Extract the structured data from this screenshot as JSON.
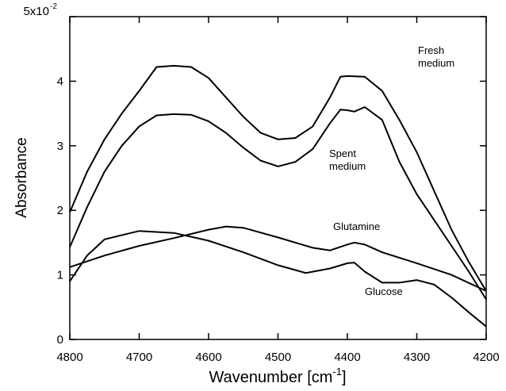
{
  "chart_data": {
    "type": "line",
    "x_label": "Wavenumber [cm",
    "x_label_sup": "-1",
    "x_label_end": "]",
    "y_label": "Absorbance",
    "y_exponent": "-2",
    "xlim": [
      4800,
      4200
    ],
    "xticks": [
      4800,
      4700,
      4600,
      4500,
      4400,
      4300,
      4200
    ],
    "ylim": [
      0,
      5
    ],
    "yticks": [
      0,
      1,
      2,
      3,
      4,
      {
        "value": 5,
        "label": "5x10"
      }
    ],
    "series": [
      {
        "name": "Fresh medium",
        "color": "#000000",
        "x": [
          4800,
          4775,
          4750,
          4725,
          4700,
          4675,
          4650,
          4625,
          4600,
          4575,
          4550,
          4525,
          4500,
          4475,
          4450,
          4425,
          4410,
          4400,
          4375,
          4350,
          4325,
          4300,
          4275,
          4250,
          4225,
          4200
        ],
        "values": [
          1.97,
          2.6,
          3.1,
          3.5,
          3.85,
          4.22,
          4.24,
          4.22,
          4.05,
          3.75,
          3.45,
          3.2,
          3.1,
          3.12,
          3.3,
          3.75,
          4.07,
          4.08,
          4.07,
          3.85,
          3.4,
          2.9,
          2.3,
          1.7,
          1.2,
          0.75
        ]
      },
      {
        "name": "Spent medium",
        "color": "#000000",
        "x": [
          4800,
          4775,
          4750,
          4725,
          4700,
          4675,
          4650,
          4625,
          4600,
          4575,
          4550,
          4525,
          4500,
          4475,
          4450,
          4425,
          4410,
          4400,
          4390,
          4375,
          4350,
          4325,
          4300,
          4275,
          4250,
          4225,
          4200
        ],
        "values": [
          1.43,
          2.05,
          2.6,
          3.0,
          3.3,
          3.47,
          3.49,
          3.48,
          3.38,
          3.2,
          2.97,
          2.77,
          2.68,
          2.75,
          2.95,
          3.35,
          3.56,
          3.55,
          3.53,
          3.6,
          3.4,
          2.75,
          2.25,
          1.85,
          1.45,
          1.05,
          0.62
        ]
      },
      {
        "name": "Glutamine",
        "color": "#000000",
        "x": [
          4800,
          4750,
          4700,
          4650,
          4600,
          4575,
          4550,
          4500,
          4450,
          4425,
          4400,
          4390,
          4375,
          4350,
          4300,
          4250,
          4200
        ],
        "values": [
          1.12,
          1.3,
          1.45,
          1.57,
          1.7,
          1.75,
          1.73,
          1.58,
          1.42,
          1.38,
          1.47,
          1.5,
          1.47,
          1.35,
          1.18,
          1.0,
          0.75
        ]
      },
      {
        "name": "Glucose",
        "color": "#000000",
        "x": [
          4800,
          4775,
          4750,
          4700,
          4650,
          4600,
          4550,
          4500,
          4460,
          4425,
          4400,
          4390,
          4375,
          4350,
          4325,
          4300,
          4275,
          4250,
          4225,
          4200
        ],
        "values": [
          0.9,
          1.3,
          1.55,
          1.68,
          1.65,
          1.53,
          1.35,
          1.15,
          1.03,
          1.1,
          1.18,
          1.19,
          1.05,
          0.88,
          0.88,
          0.92,
          0.85,
          0.65,
          0.42,
          0.2
        ]
      }
    ]
  }
}
